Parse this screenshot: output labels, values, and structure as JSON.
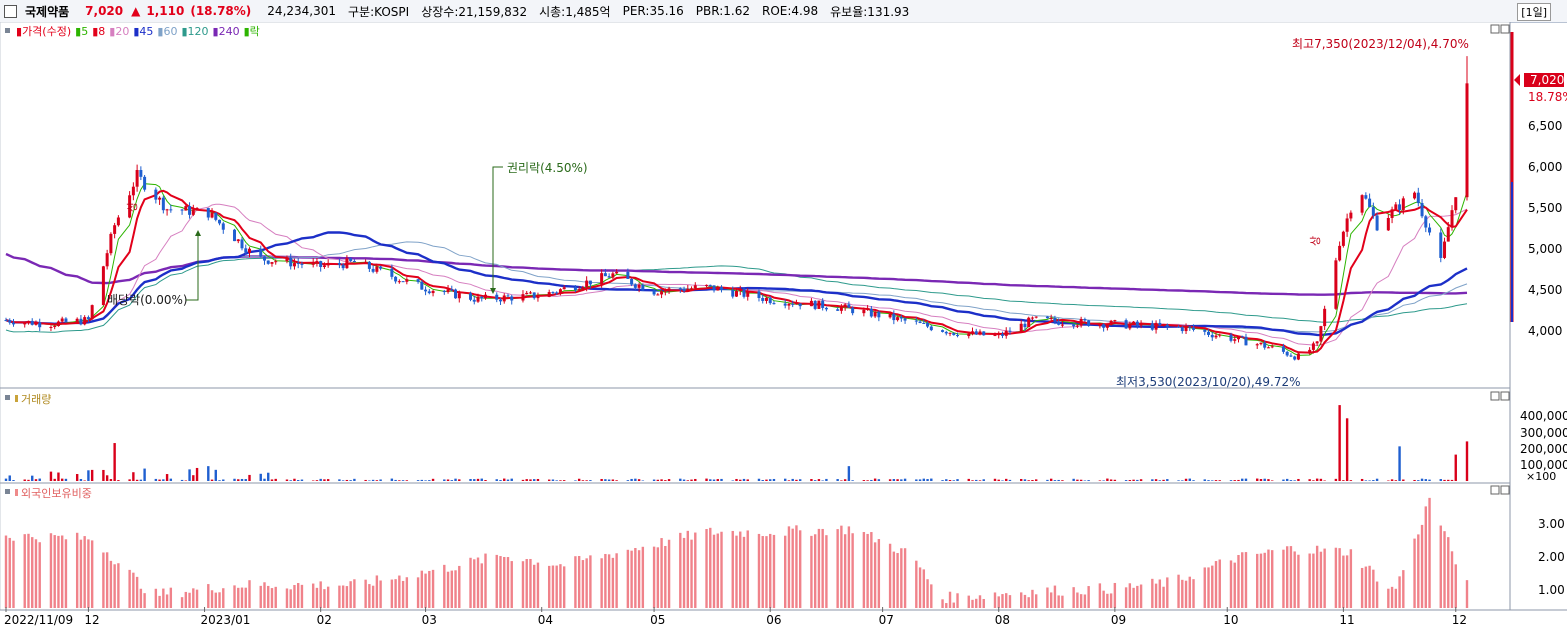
{
  "header": {
    "stock_name": "국제약품",
    "price": "7,020",
    "change_arrow": "▲",
    "change": "1,110",
    "change_pct": "(18.78%)",
    "volume": "24,234,301",
    "market": "구분:KOSPI",
    "shares": "상장수:21,159,832",
    "market_cap": "시총:1,485억",
    "per": "PER:35.16",
    "pbr": "PBR:1.62",
    "roe": "ROE:4.98",
    "float_ratio": "유보율:131.93",
    "period": "[1일]"
  },
  "price_panel": {
    "legend": [
      {
        "text": "가격(수정)",
        "color": "#e2001a"
      },
      {
        "text": "5",
        "color": "#2db400"
      },
      {
        "text": "8",
        "color": "#e2001a"
      },
      {
        "text": "20",
        "color": "#d67fc0"
      },
      {
        "text": "45",
        "color": "#1c2fc8"
      },
      {
        "text": "60",
        "color": "#7fa2c8"
      },
      {
        "text": "120",
        "color": "#2e9a8c"
      },
      {
        "text": "240",
        "color": "#7a28b4"
      },
      {
        "text": "락",
        "color": "#2db400"
      }
    ],
    "axis_ticks": [
      "6,500",
      "6,000",
      "5,500",
      "5,000",
      "4,500",
      "4,000"
    ],
    "current_price_tag": "7,020",
    "current_pct_tag": "18.78%",
    "annotations": {
      "high": "최고7,350(2023/12/04),4.70%",
      "low": "최저3,530(2023/10/20),49.72%",
      "rights": "권리락(4.50%)",
      "dividend": "배당락(0.00%)",
      "limit_up_1": "상",
      "limit_up_2": "상"
    }
  },
  "volume_panel": {
    "label": "거래량",
    "axis_ticks": [
      "400,000",
      "300,000",
      "200,000",
      "100,000"
    ],
    "unit": "×100"
  },
  "foreign_panel": {
    "label": "외국인보유비중",
    "axis_ticks": [
      "3.00",
      "2.00",
      "1.00"
    ]
  },
  "x_axis": {
    "labels": [
      "2022/11/09",
      "12",
      "2023/01",
      "02",
      "03",
      "04",
      "05",
      "06",
      "07",
      "08",
      "09",
      "10",
      "11",
      "12"
    ]
  },
  "chart_data": {
    "type": "candlestick",
    "price": {
      "high_point": {
        "value": 7350,
        "date": "2023/12/04"
      },
      "low_point": {
        "value": 3530,
        "date": "2023/10/20"
      },
      "last": 7020,
      "keypoints": [
        [
          "2022/11/09",
          4150
        ],
        [
          "2022/11/20",
          4100
        ],
        [
          "2022/12/01",
          4150
        ],
        [
          "2022/12/08",
          5300
        ],
        [
          "2022/12/14",
          5900
        ],
        [
          "2022/12/22",
          5500
        ],
        [
          "2023/01/02",
          5450
        ],
        [
          "2023/01/15",
          4900
        ],
        [
          "2023/02/01",
          4800
        ],
        [
          "2023/02/10",
          4850
        ],
        [
          "2023/02/28",
          4550
        ],
        [
          "2023/03/15",
          4400
        ],
        [
          "2023/04/01",
          4450
        ],
        [
          "2023/04/20",
          4700
        ],
        [
          "2023/05/01",
          4500
        ],
        [
          "2023/05/15",
          4550
        ],
        [
          "2023/06/01",
          4400
        ],
        [
          "2023/06/20",
          4300
        ],
        [
          "2023/07/01",
          4200
        ],
        [
          "2023/07/20",
          4000
        ],
        [
          "2023/08/01",
          3950
        ],
        [
          "2023/08/10",
          4150
        ],
        [
          "2023/09/01",
          4100
        ],
        [
          "2023/09/20",
          4050
        ],
        [
          "2023/10/10",
          3850
        ],
        [
          "2023/10/20",
          3700
        ],
        [
          "2023/10/25",
          3850
        ],
        [
          "2023/10/31",
          5100
        ],
        [
          "2023/11/05",
          5800
        ],
        [
          "2023/11/10",
          5300
        ],
        [
          "2023/11/20",
          5700
        ],
        [
          "2023/11/27",
          4850
        ],
        [
          "2023/12/01",
          5700
        ],
        [
          "2023/12/04",
          7020
        ]
      ]
    },
    "volume_spikes": [
      {
        "date": "2022/12/08",
        "value": 230000
      },
      {
        "date": "2023/01/02",
        "value": 90000
      },
      {
        "date": "2023/06/22",
        "value": 90000
      },
      {
        "date": "2023/10/31",
        "value": 460000
      },
      {
        "date": "2023/11/02",
        "value": 380000
      },
      {
        "date": "2023/11/16",
        "value": 210000
      },
      {
        "date": "2023/12/01",
        "value": 160000
      },
      {
        "date": "2023/12/04",
        "value": 240000
      }
    ],
    "foreign_ratio_range": [
      0.2,
      3.8
    ]
  }
}
